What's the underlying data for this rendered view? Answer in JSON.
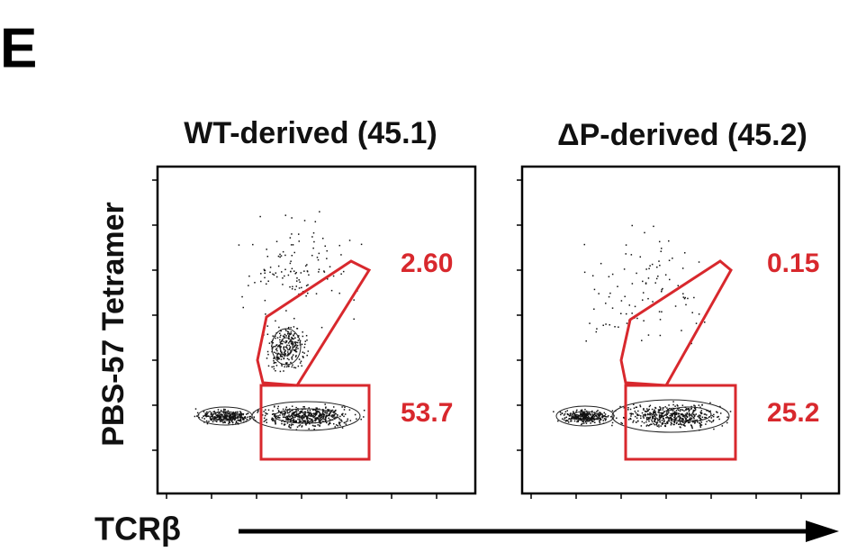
{
  "panel_label": "E",
  "y_axis_label": "PBS-57 Tetramer",
  "x_axis_label": "TCRβ",
  "plots": [
    {
      "title": "WT-derived (45.1)",
      "gates": [
        {
          "label": "2.60"
        },
        {
          "label": "53.7"
        }
      ]
    },
    {
      "title": "ΔP-derived (45.2)",
      "gates": [
        {
          "label": "0.15"
        },
        {
          "label": "25.2"
        }
      ]
    }
  ]
}
